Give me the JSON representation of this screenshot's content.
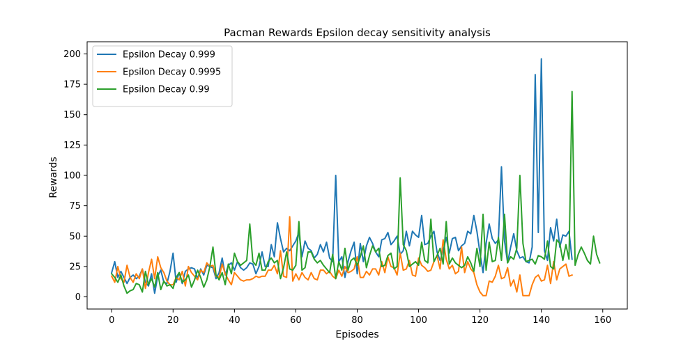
{
  "chart_data": {
    "type": "line",
    "title": "Pacman Rewards Epsilon decay sensitivity analysis",
    "xlabel": "Episodes",
    "ylabel": "Rewards",
    "xlim": [
      -8,
      168
    ],
    "ylim": [
      -10,
      210
    ],
    "xticks": [
      0,
      20,
      40,
      60,
      80,
      100,
      120,
      140,
      160
    ],
    "yticks": [
      0,
      25,
      50,
      75,
      100,
      125,
      150,
      175,
      200
    ],
    "grid": false,
    "legend_position": "top-left",
    "series": [
      {
        "name": "Epsilon Decay 0.999",
        "color": "#1f77b4",
        "x_start": 0,
        "values": [
          20,
          29,
          16,
          21,
          16,
          11,
          16,
          18,
          15,
          17,
          23,
          12,
          9,
          19,
          3,
          17,
          22,
          12,
          11,
          21,
          36,
          12,
          20,
          11,
          21,
          23,
          24,
          23,
          15,
          23,
          18,
          26,
          25,
          24,
          15,
          20,
          32,
          18,
          26,
          28,
          22,
          29,
          24,
          22,
          24,
          28,
          27,
          19,
          25,
          37,
          25,
          25,
          43,
          33,
          61,
          48,
          37,
          40,
          38,
          42,
          46,
          53,
          33,
          46,
          40,
          38,
          32,
          35,
          43,
          37,
          45,
          32,
          29,
          100,
          29,
          33,
          16,
          29,
          38,
          45,
          19,
          44,
          29,
          42,
          49,
          44,
          37,
          33,
          47,
          48,
          53,
          43,
          46,
          50,
          35,
          38,
          54,
          42,
          54,
          51,
          49,
          67,
          43,
          44,
          50,
          54,
          37,
          30,
          38,
          49,
          36,
          48,
          49,
          38,
          42,
          44,
          54,
          52,
          67,
          54,
          36,
          20,
          44,
          60,
          48,
          44,
          47,
          107,
          46,
          28,
          41,
          52,
          38,
          32,
          33,
          29,
          28,
          41,
          183,
          53,
          196,
          38,
          30,
          57,
          46,
          64,
          41,
          51,
          50,
          54,
          31
        ]
      },
      {
        "name": "Epsilon Decay 0.9995",
        "color": "#ff7f0e",
        "x_start": 0,
        "values": [
          17,
          12,
          25,
          15,
          12,
          26,
          16,
          12,
          19,
          15,
          23,
          7,
          20,
          31,
          15,
          33,
          24,
          20,
          13,
          10,
          10,
          16,
          14,
          21,
          9,
          25,
          20,
          17,
          14,
          22,
          20,
          28,
          25,
          26,
          17,
          16,
          27,
          19,
          14,
          10,
          20,
          17,
          14,
          13,
          14,
          14,
          15,
          17,
          16,
          17,
          17,
          22,
          22,
          26,
          19,
          38,
          17,
          16,
          66,
          13,
          19,
          14,
          20,
          16,
          14,
          20,
          15,
          14,
          22,
          22,
          19,
          21,
          17,
          15,
          22,
          17,
          25,
          20,
          21,
          23,
          33,
          16,
          16,
          21,
          18,
          23,
          23,
          18,
          29,
          20,
          33,
          25,
          24,
          18,
          36,
          22,
          23,
          30,
          18,
          17,
          32,
          26,
          24,
          21,
          22,
          29,
          34,
          23,
          47,
          31,
          23,
          26,
          19,
          21,
          41,
          20,
          29,
          23,
          20,
          10,
          4,
          1,
          1,
          13,
          12,
          17,
          26,
          15,
          16,
          24,
          9,
          14,
          4,
          18,
          1,
          1,
          1,
          10,
          16,
          18,
          13,
          14,
          26,
          11,
          29,
          14,
          23,
          25,
          27,
          17,
          18
        ]
      },
      {
        "name": "Epsilon Decay 0.99",
        "color": "#2ca02c",
        "x_start": 0,
        "values": [
          19,
          16,
          12,
          18,
          9,
          3,
          5,
          6,
          11,
          10,
          4,
          21,
          10,
          15,
          8,
          20,
          6,
          13,
          9,
          10,
          7,
          16,
          20,
          12,
          14,
          18,
          8,
          14,
          22,
          16,
          8,
          14,
          25,
          41,
          18,
          14,
          20,
          10,
          27,
          19,
          36,
          29,
          26,
          28,
          30,
          60,
          29,
          26,
          36,
          22,
          22,
          29,
          32,
          28,
          30,
          15,
          24,
          37,
          23,
          22,
          26,
          62,
          22,
          24,
          37,
          37,
          31,
          28,
          30,
          26,
          23,
          20,
          35,
          15,
          29,
          22,
          40,
          22,
          30,
          32,
          26,
          33,
          42,
          24,
          34,
          42,
          37,
          40,
          25,
          26,
          34,
          36,
          23,
          25,
          98,
          43,
          38,
          25,
          27,
          29,
          26,
          45,
          30,
          28,
          64,
          29,
          34,
          40,
          27,
          62,
          27,
          32,
          28,
          26,
          24,
          26,
          33,
          28,
          21,
          40,
          25,
          68,
          22,
          45,
          29,
          30,
          49,
          30,
          68,
          28,
          33,
          31,
          40,
          100,
          44,
          29,
          30,
          31,
          27,
          34,
          33,
          31,
          46,
          25,
          23,
          47,
          44,
          30,
          43,
          31,
          169,
          26,
          35,
          41,
          36,
          30,
          27,
          50,
          35,
          28
        ]
      }
    ]
  }
}
